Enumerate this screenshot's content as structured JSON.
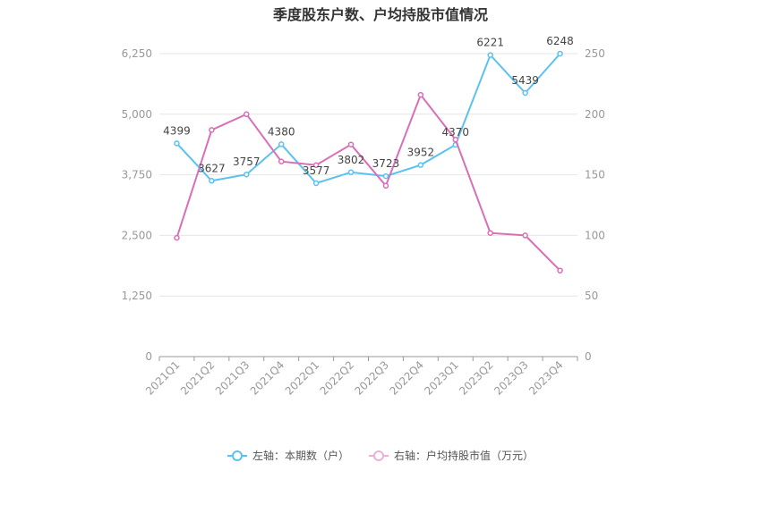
{
  "chart_data": {
    "type": "line",
    "title": "季度股东户数、户均持股市值情况",
    "categories": [
      "2021Q1",
      "2021Q2",
      "2021Q3",
      "2021Q4",
      "2022Q1",
      "2022Q2",
      "2022Q3",
      "2022Q4",
      "2023Q1",
      "2023Q2",
      "2023Q3",
      "2023Q4"
    ],
    "left_axis": {
      "min": 0,
      "max": 6250,
      "ticks": [
        "0",
        "1,250",
        "2,500",
        "3,750",
        "5,000",
        "6,250"
      ]
    },
    "right_axis": {
      "min": 0,
      "max": 250,
      "ticks": [
        "0",
        "50",
        "100",
        "150",
        "200",
        "250"
      ]
    },
    "series": [
      {
        "name": "左轴：本期数（户）",
        "axis": "left",
        "color": "#5bc2f0",
        "values": [
          4399,
          3627,
          3757,
          4380,
          3577,
          3802,
          3723,
          3952,
          4370,
          6221,
          5439,
          6248
        ],
        "labels": [
          "4399",
          "3627",
          "3757",
          "4380",
          "3577",
          "3802",
          "3723",
          "3952",
          "4370",
          "6221",
          "5439",
          "6248"
        ]
      },
      {
        "name": "右轴：户均持股市值（万元）",
        "axis": "right",
        "color": "#d86fb7",
        "values": [
          98,
          187,
          200,
          161,
          158,
          175,
          141,
          216,
          179,
          102,
          100,
          71
        ]
      }
    ],
    "grid": true,
    "legend_position": "bottom"
  }
}
